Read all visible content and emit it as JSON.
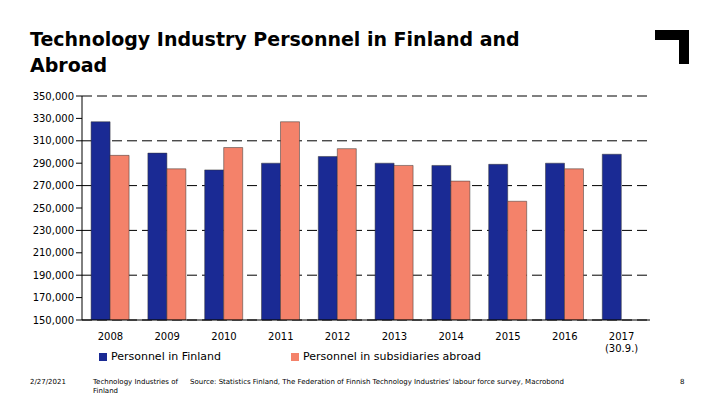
{
  "chart_data": {
    "type": "bar",
    "title": "Technology Industry Personnel in Finland and Abroad",
    "categories": [
      "2008",
      "2009",
      "2010",
      "2011",
      "2012",
      "2013",
      "2014",
      "2015",
      "2016",
      "2017\n(30.9.)"
    ],
    "series": [
      {
        "name": "Personnel in Finland",
        "color": "#1a2a94",
        "values": [
          327000,
          299000,
          284000,
          290000,
          296000,
          290000,
          288000,
          289000,
          290000,
          298000
        ]
      },
      {
        "name": "Personnel in subsidiaries abroad",
        "color": "#f4826a",
        "values": [
          297000,
          285000,
          304000,
          327000,
          303000,
          288000,
          274000,
          256000,
          285000,
          null
        ]
      }
    ],
    "ylim": [
      150000,
      350000
    ],
    "yticks": [
      {
        "value": 150000,
        "label": "150,000"
      },
      {
        "value": 170000,
        "label": "170,000"
      },
      {
        "value": 190000,
        "label": "190,000"
      },
      {
        "value": 210000,
        "label": "210,000"
      },
      {
        "value": 230000,
        "label": "230,000"
      },
      {
        "value": 250000,
        "label": "250,000"
      },
      {
        "value": 270000,
        "label": "270,000"
      },
      {
        "value": 290000,
        "label": "290,000"
      },
      {
        "value": 310000,
        "label": "310,000"
      },
      {
        "value": 330000,
        "label": "330,000"
      },
      {
        "value": 350000,
        "label": "350,000"
      }
    ],
    "grid": true,
    "legend": "bottom",
    "footer": {
      "date": "2/27/2021",
      "organization": "Technology Industries of Finland",
      "source": "Source: Statistics Finland, The Federation of Finnish Technology Industries' labour force survey, Macrobond",
      "page": "8"
    }
  }
}
